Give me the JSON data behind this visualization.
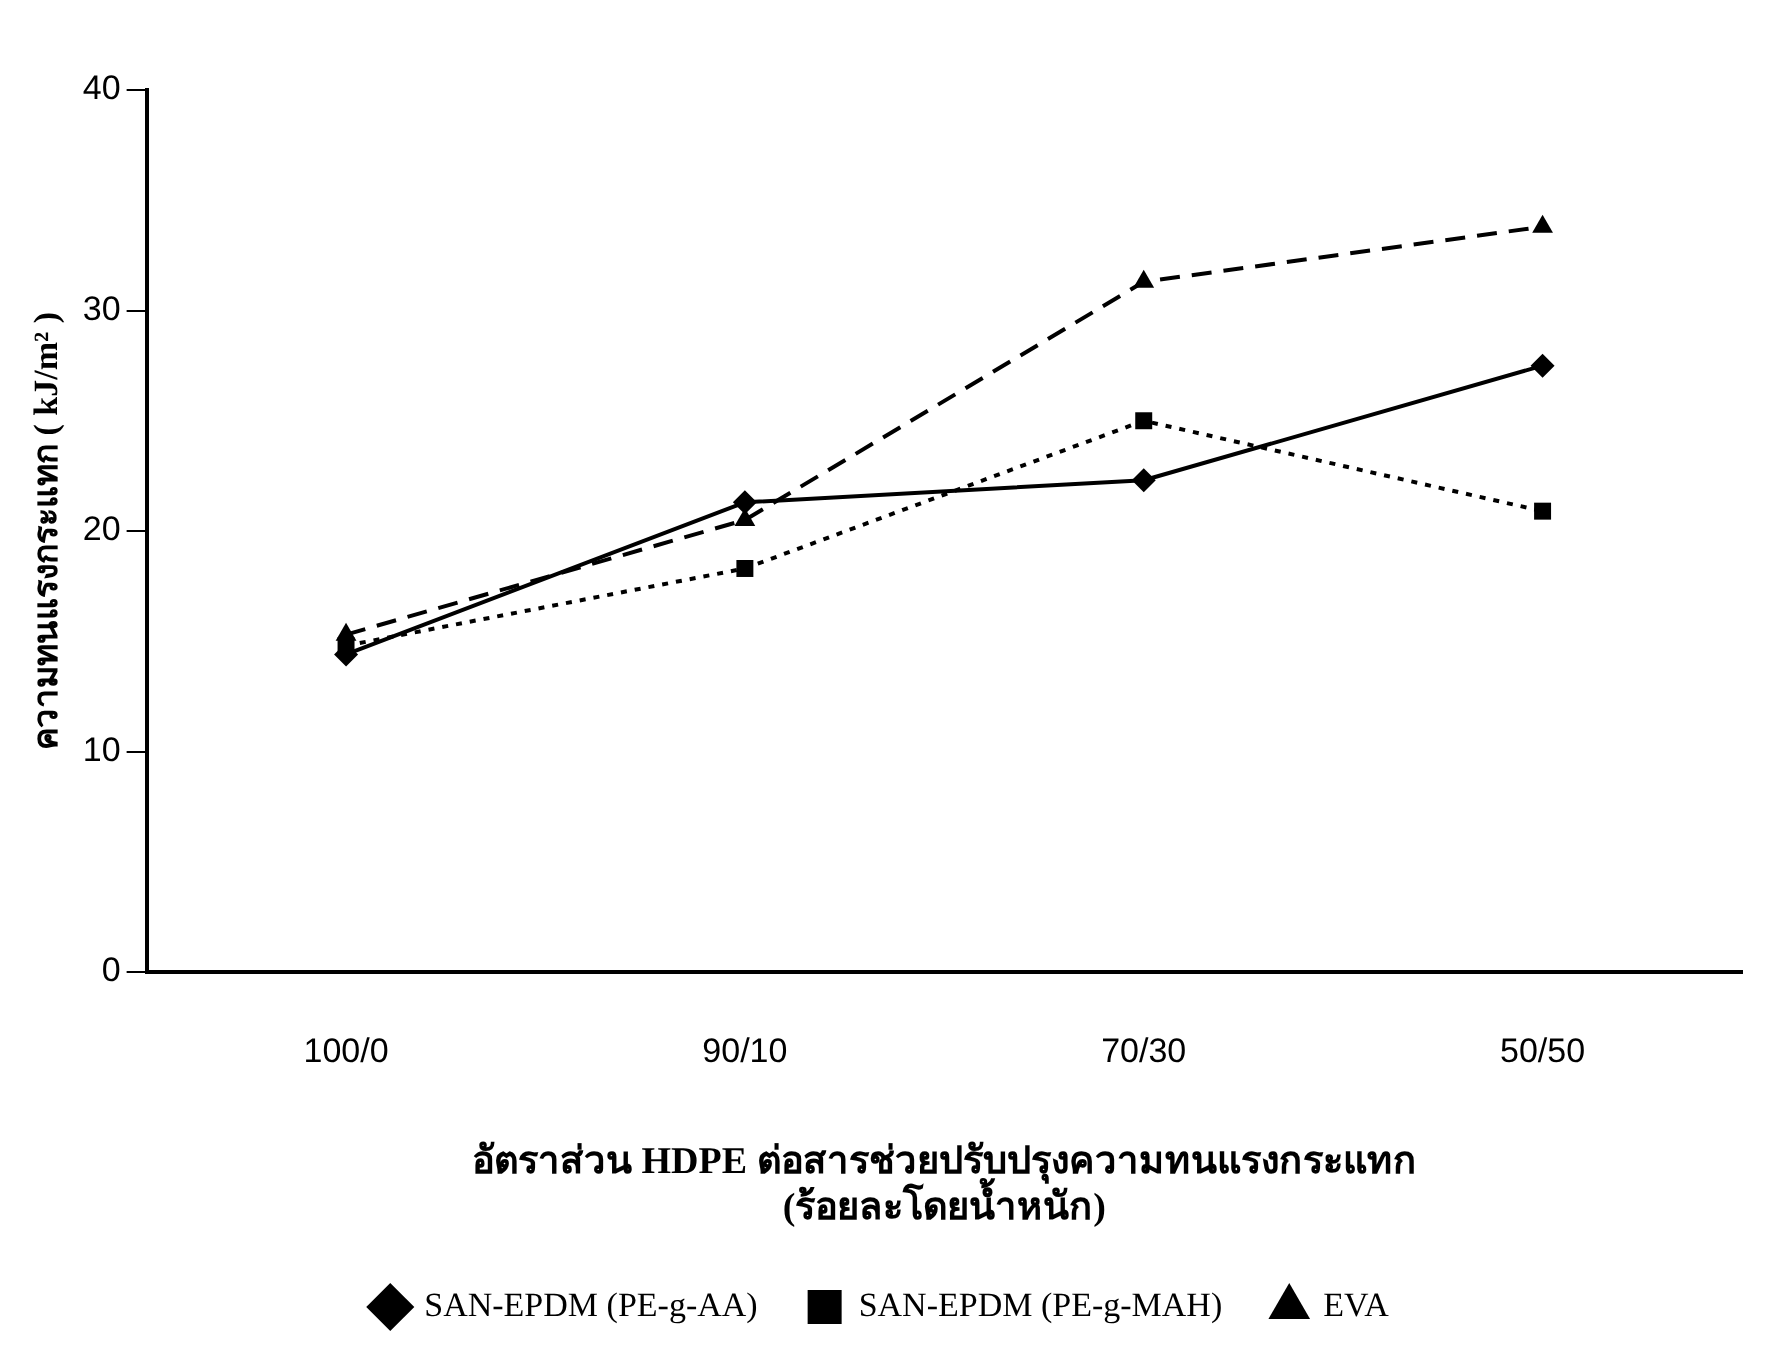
{
  "chart_data": {
    "type": "line",
    "ylabel": "ความทนแรงกระแทก ( kJ/m² )",
    "xlabel": "อัตราส่วน HDPE ต่อสารช่วยปรับปรุงความทนแรงกระแทก\n(ร้อยละโดยน้ำหนัก)",
    "categories": [
      "100/0",
      "90/10",
      "70/30",
      "50/50"
    ],
    "series": [
      {
        "name": "SAN-EPDM (PE-g-AA)",
        "color": "#000000",
        "marker": "diamond",
        "line_style": "solid",
        "values": [
          14.4,
          21.3,
          22.3,
          27.5
        ]
      },
      {
        "name": "SAN-EPDM (PE-g-MAH)",
        "color": "#000000",
        "marker": "square",
        "line_style": "dotted",
        "values": [
          14.8,
          18.3,
          25.0,
          20.9
        ]
      },
      {
        "name": "EVA",
        "color": "#000000",
        "marker": "triangle",
        "line_style": "dashed",
        "values": [
          15.3,
          20.5,
          31.3,
          33.8
        ]
      }
    ],
    "ylim": [
      0,
      40
    ],
    "yticks": [
      0,
      10,
      20,
      30,
      40
    ],
    "grid": false,
    "legend": "bottom"
  }
}
